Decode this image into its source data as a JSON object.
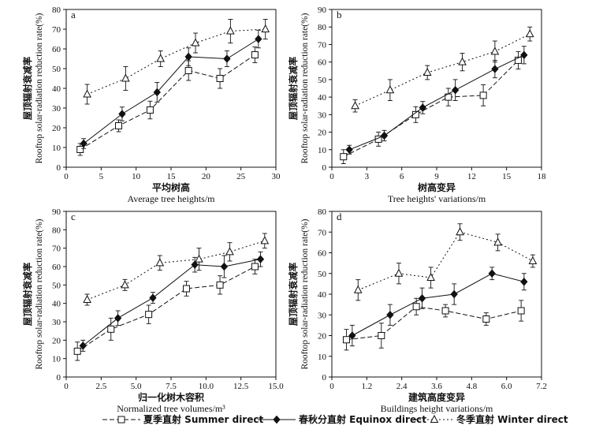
{
  "figure": {
    "legend": [
      {
        "key": "summer",
        "label": "夏季直射 Summer direct"
      },
      {
        "key": "equinox",
        "label": "春秋分直射 Equinox direct"
      },
      {
        "key": "winter",
        "label": "冬季直射 Winter direct"
      }
    ]
  },
  "chart_data": [
    {
      "type": "line",
      "panel": "a",
      "ylabel_cn": "屋顶辐射衰减率",
      "ylabel_en": "Rooftop solar-radiation reduction rate(%)",
      "xlabel_cn": "平均树高",
      "xlabel_en": "Average tree heights/m",
      "xlim": [
        0,
        30
      ],
      "ylim": [
        0,
        80
      ],
      "xticks": [
        0,
        5,
        10,
        15,
        20,
        25,
        30
      ],
      "xtick_labels": [
        "0",
        "5",
        "10",
        "15",
        "20",
        "25",
        "30"
      ],
      "yticks": [
        0,
        10,
        20,
        30,
        40,
        50,
        60,
        70,
        80
      ],
      "series": [
        {
          "name": "Summer direct",
          "x": [
            2,
            7.5,
            12,
            17.5,
            22,
            27
          ],
          "y": [
            9,
            21,
            29,
            49,
            45,
            57
          ],
          "err": [
            3,
            3,
            4.5,
            5,
            5,
            4
          ]
        },
        {
          "name": "Equinox direct",
          "x": [
            2.5,
            8,
            13,
            17.5,
            23,
            27.5
          ],
          "y": [
            12,
            27,
            38,
            56,
            55,
            65
          ],
          "err": [
            2.5,
            3.5,
            5,
            4.5,
            4,
            4.5
          ]
        },
        {
          "name": "Winter direct",
          "x": [
            3,
            8.5,
            13.5,
            18.5,
            23.5,
            28.5
          ],
          "y": [
            37,
            45,
            55,
            63,
            69,
            70
          ],
          "err": [
            5,
            6,
            4,
            5,
            6,
            5
          ]
        }
      ]
    },
    {
      "type": "line",
      "panel": "b",
      "ylabel_cn": "屋顶辐射衰减率",
      "ylabel_en": "Rooftop solar-radiation reduction rate(%)",
      "xlabel_cn": "树高变异",
      "xlabel_en": "Tree heights' variations/m",
      "xlim": [
        0,
        18
      ],
      "ylim": [
        0,
        90
      ],
      "xticks": [
        0,
        3,
        6,
        9,
        12,
        15,
        18
      ],
      "xtick_labels": [
        "0",
        "3",
        "6",
        "9",
        "12",
        "15",
        "18"
      ],
      "yticks": [
        0,
        10,
        20,
        30,
        40,
        50,
        60,
        70,
        80,
        90
      ],
      "series": [
        {
          "name": "Summer direct",
          "x": [
            1,
            4,
            7.2,
            10,
            13,
            16
          ],
          "y": [
            6,
            16,
            30,
            40,
            41,
            61
          ],
          "err": [
            4,
            4,
            4.5,
            5,
            6,
            5
          ]
        },
        {
          "name": "Equinox direct",
          "x": [
            1.5,
            4.5,
            7.8,
            10.6,
            14,
            16.5
          ],
          "y": [
            10,
            18,
            34,
            44,
            56,
            64
          ],
          "err": [
            2.5,
            3,
            3.5,
            6,
            5,
            5
          ]
        },
        {
          "name": "Winter direct",
          "x": [
            2,
            5,
            8.2,
            11.2,
            14,
            17
          ],
          "y": [
            35,
            44,
            54,
            60,
            66,
            76
          ],
          "err": [
            3.5,
            6,
            4,
            5,
            6,
            4
          ]
        }
      ]
    },
    {
      "type": "line",
      "panel": "c",
      "ylabel_cn": "屋顶辐射衰减率",
      "ylabel_en": "Rooftop solar-radiation reduction rate(%)",
      "xlabel_cn": "归一化树木容积",
      "xlabel_en": "Normalized tree volumes/m³",
      "xlim": [
        0,
        15
      ],
      "ylim": [
        0,
        90
      ],
      "xticks": [
        0,
        2.5,
        5,
        7.5,
        10,
        12.5,
        15
      ],
      "xtick_labels": [
        "0",
        "2.5",
        "5.0",
        "7.5",
        "10.0",
        "12.5",
        "15.0"
      ],
      "yticks": [
        0,
        10,
        20,
        30,
        40,
        50,
        60,
        70,
        80,
        90
      ],
      "series": [
        {
          "name": "Summer direct",
          "x": [
            0.8,
            3.2,
            5.9,
            8.6,
            11,
            13.5
          ],
          "y": [
            14,
            26,
            34,
            48,
            50,
            60
          ],
          "err": [
            5,
            6,
            5,
            4,
            5,
            4
          ]
        },
        {
          "name": "Equinox direct",
          "x": [
            1.2,
            3.7,
            6.2,
            9.2,
            11.3,
            13.9
          ],
          "y": [
            17,
            32,
            43,
            61,
            60,
            64
          ],
          "err": [
            3,
            4,
            3,
            4,
            6,
            4
          ]
        },
        {
          "name": "Winter direct",
          "x": [
            1.5,
            4.2,
            6.7,
            9.5,
            11.7,
            14.2
          ],
          "y": [
            42,
            50,
            62,
            64,
            68,
            74
          ],
          "err": [
            3,
            3,
            4,
            6,
            5,
            4
          ]
        }
      ]
    },
    {
      "type": "line",
      "panel": "d",
      "ylabel_cn": "屋顶辐射衰减率",
      "ylabel_en": "Rooftop solar-radiation reduction rate(%)",
      "xlabel_cn": "建筑高度变异",
      "xlabel_en": "Buildings height variations/m",
      "xlim": [
        0,
        7.2
      ],
      "ylim": [
        0,
        80
      ],
      "xticks": [
        0,
        1.2,
        2.4,
        3.6,
        4.8,
        6.0,
        7.2
      ],
      "xtick_labels": [
        "0",
        "1.2",
        "2.4",
        "3.6",
        "4.8",
        "6.0",
        "7.2"
      ],
      "yticks": [
        0,
        10,
        20,
        30,
        40,
        50,
        60,
        70,
        80
      ],
      "series": [
        {
          "name": "Summer direct",
          "x": [
            0.5,
            1.7,
            2.9,
            3.9,
            5.3,
            6.5
          ],
          "y": [
            18,
            20,
            34,
            32,
            28,
            32
          ],
          "err": [
            5,
            6,
            4,
            3,
            3,
            5
          ]
        },
        {
          "name": "Equinox direct",
          "x": [
            0.7,
            2.0,
            3.1,
            4.2,
            5.5,
            6.6
          ],
          "y": [
            20,
            30,
            38,
            40,
            50,
            46
          ],
          "err": [
            5,
            5,
            5,
            5,
            3,
            4
          ]
        },
        {
          "name": "Winter direct",
          "x": [
            0.9,
            2.3,
            3.4,
            4.4,
            5.7,
            6.9
          ],
          "y": [
            42,
            50,
            48,
            70,
            65,
            56
          ],
          "err": [
            5,
            5,
            5,
            4,
            4,
            3
          ]
        }
      ]
    }
  ]
}
